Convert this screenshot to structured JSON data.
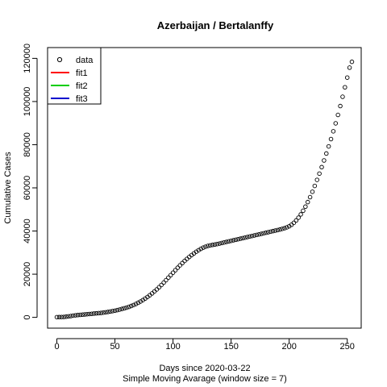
{
  "chart_data": {
    "type": "scatter",
    "title": "Azerbaijan / Bertalanffy",
    "xlabel": "Days since 2020-03-22",
    "subtitle": "Simple Moving Avarage (window size = 7)",
    "ylabel": "Cumulative Cases",
    "xlim": [
      -8,
      262
    ],
    "ylim": [
      -5000,
      125000
    ],
    "x_ticks": [
      0,
      50,
      100,
      150,
      200,
      250
    ],
    "y_ticks": [
      0,
      20000,
      40000,
      60000,
      80000,
      100000,
      120000
    ],
    "legend": {
      "position": "top-left",
      "entries": [
        {
          "label": "data",
          "symbol": "circle",
          "color": "#000000"
        },
        {
          "label": "fit1",
          "symbol": "line",
          "color": "#ff0000"
        },
        {
          "label": "fit2",
          "symbol": "line",
          "color": "#00cd00"
        },
        {
          "label": "fit3",
          "symbol": "line",
          "color": "#0000cd"
        }
      ]
    },
    "series": [
      {
        "name": "data",
        "x": [
          0,
          2,
          4,
          6,
          8,
          10,
          12,
          14,
          16,
          18,
          20,
          22,
          24,
          26,
          28,
          30,
          32,
          34,
          36,
          38,
          40,
          42,
          44,
          46,
          48,
          50,
          52,
          54,
          56,
          58,
          60,
          62,
          64,
          66,
          68,
          70,
          72,
          74,
          76,
          78,
          80,
          82,
          84,
          86,
          88,
          90,
          92,
          94,
          96,
          98,
          100,
          102,
          104,
          106,
          108,
          110,
          112,
          114,
          116,
          118,
          120,
          122,
          124,
          126,
          128,
          130,
          132,
          134,
          136,
          138,
          140,
          142,
          144,
          146,
          148,
          150,
          152,
          154,
          156,
          158,
          160,
          162,
          164,
          166,
          168,
          170,
          172,
          174,
          176,
          178,
          180,
          182,
          184,
          186,
          188,
          190,
          192,
          194,
          196,
          198,
          200,
          202,
          204,
          206,
          208,
          210,
          212,
          214,
          216,
          218,
          220,
          222,
          224,
          226,
          228,
          230,
          232,
          234,
          236,
          238,
          240,
          242,
          244,
          246,
          248,
          250,
          252,
          254
        ],
        "y": [
          100,
          120,
          150,
          200,
          300,
          450,
          600,
          800,
          950,
          1050,
          1150,
          1250,
          1350,
          1450,
          1550,
          1650,
          1750,
          1850,
          1950,
          2050,
          2200,
          2350,
          2500,
          2700,
          2900,
          3100,
          3350,
          3600,
          3900,
          4200,
          4500,
          4850,
          5250,
          5700,
          6200,
          6750,
          7350,
          8000,
          8700,
          9450,
          10250,
          11100,
          12000,
          12950,
          13950,
          15000,
          16100,
          17250,
          18400,
          19550,
          20700,
          21850,
          23000,
          24100,
          25150,
          26150,
          27100,
          28000,
          28850,
          29650,
          30400,
          31100,
          31750,
          32300,
          32750,
          33100,
          33350,
          33550,
          33750,
          33950,
          34200,
          34450,
          34700,
          34950,
          35200,
          35450,
          35700,
          35950,
          36200,
          36450,
          36700,
          36950,
          37200,
          37450,
          37700,
          37950,
          38200,
          38450,
          38700,
          38950,
          39200,
          39450,
          39700,
          39950,
          40200,
          40450,
          40700,
          41000,
          41300,
          41700,
          42200,
          42900,
          43800,
          44900,
          46200,
          47700,
          49400,
          51300,
          53400,
          55700,
          58200,
          60900,
          63700,
          66600,
          69600,
          72700,
          75900,
          79200,
          82600,
          86200,
          89900,
          93800,
          97900,
          102200,
          106600,
          111100,
          115700,
          118400
        ]
      },
      {
        "name": "fit1",
        "x": [],
        "y": []
      },
      {
        "name": "fit2",
        "x": [],
        "y": []
      },
      {
        "name": "fit3",
        "x": [],
        "y": []
      }
    ]
  }
}
